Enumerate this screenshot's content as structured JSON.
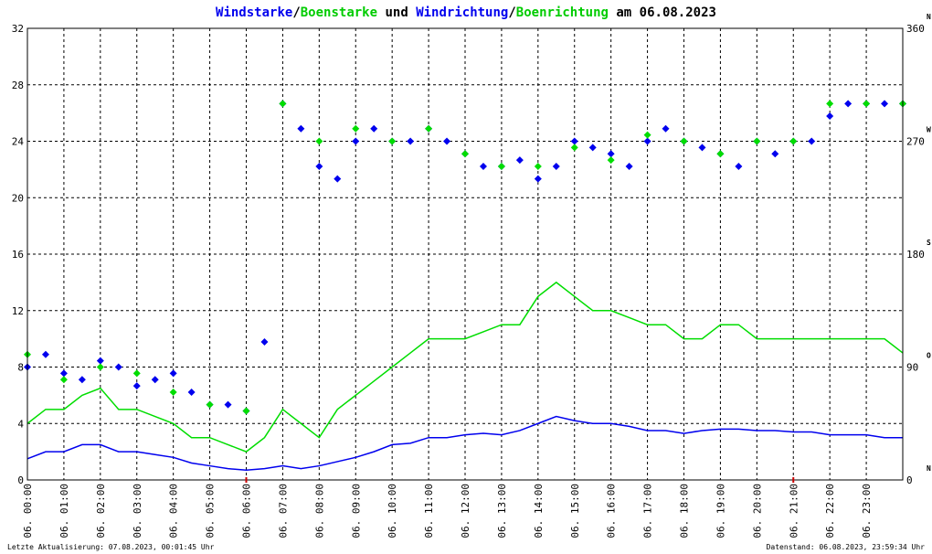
{
  "title": {
    "part1": "Windstarke",
    "sep1": "/",
    "part2": "Boenstarke",
    "mid": " und ",
    "part3": "Windrichtung",
    "sep2": "/",
    "part4": "Boenrichtung",
    "end": " am 06.08.2023"
  },
  "footer": {
    "left": "Letzte Aktualisierung: 07.08.2023, 00:01:45 Uhr",
    "right": "Datenstand: 06.08.2023, 23:59:34 Uhr"
  },
  "colors": {
    "wind": "#0000ee",
    "gust": "#00dd00",
    "grid": "#000000",
    "red_tick": "#cc0000"
  },
  "chart_data": {
    "type": "line",
    "title": "Windstarke/Boenstarke und Windrichtung/Boenrichtung am 06.08.2023",
    "x_unit": "hour of day",
    "xlim": [
      0,
      24
    ],
    "ylim_left": [
      0,
      32
    ],
    "ylim_right": [
      0,
      360
    ],
    "y_ticks_left": [
      "0",
      "4",
      "8",
      "12",
      "16",
      "20",
      "24",
      "28",
      "32"
    ],
    "y_ticks_right": [
      {
        "value": "0",
        "dir": "N"
      },
      {
        "value": "90",
        "dir": "O"
      },
      {
        "value": "180",
        "dir": "S"
      },
      {
        "value": "270",
        "dir": "W"
      },
      {
        "value": "360",
        "dir": "N"
      }
    ],
    "x_ticks": [
      {
        "h": 0,
        "label": "06. 00:00"
      },
      {
        "h": 1,
        "label": "06. 01:00"
      },
      {
        "h": 2,
        "label": "06. 02:00"
      },
      {
        "h": 3,
        "label": "06. 03:00"
      },
      {
        "h": 4,
        "label": "06. 04:00"
      },
      {
        "h": 5,
        "label": "06. 05:00"
      },
      {
        "h": 6,
        "label": "06. 06:00"
      },
      {
        "h": 7,
        "label": "06. 07:00"
      },
      {
        "h": 8,
        "label": "06. 08:00"
      },
      {
        "h": 9,
        "label": "06. 09:00"
      },
      {
        "h": 10,
        "label": "06. 10:00"
      },
      {
        "h": 11,
        "label": "06. 11:00"
      },
      {
        "h": 12,
        "label": "06. 12:00"
      },
      {
        "h": 13,
        "label": "06. 13:00"
      },
      {
        "h": 14,
        "label": "06. 14:00"
      },
      {
        "h": 15,
        "label": "06. 15:00"
      },
      {
        "h": 16,
        "label": "06. 16:00"
      },
      {
        "h": 17,
        "label": "06. 17:00"
      },
      {
        "h": 18,
        "label": "06. 18:00"
      },
      {
        "h": 19,
        "label": "06. 19:00"
      },
      {
        "h": 20,
        "label": "06. 20:00"
      },
      {
        "h": 21,
        "label": "06. 21:00"
      },
      {
        "h": 22,
        "label": "06. 22:00"
      },
      {
        "h": 23,
        "label": "06. 23:00"
      }
    ],
    "red_marks_h": [
      6,
      21
    ],
    "grid": true,
    "series": [
      {
        "name": "Windstarke",
        "color": "#0000ee",
        "axis": "left",
        "x": [
          0,
          0.5,
          1,
          1.5,
          2,
          2.5,
          3,
          3.5,
          4,
          4.5,
          5,
          5.5,
          6,
          6.5,
          7,
          7.5,
          8,
          8.5,
          9,
          9.5,
          10,
          10.5,
          11,
          11.5,
          12,
          12.5,
          13,
          13.5,
          14,
          14.5,
          15,
          15.5,
          16,
          16.5,
          17,
          17.5,
          18,
          18.5,
          19,
          19.5,
          20,
          20.5,
          21,
          21.5,
          22,
          22.5,
          23,
          23.5,
          24
        ],
        "y": [
          1.5,
          2,
          2,
          2.5,
          2.5,
          2,
          2,
          1.8,
          1.6,
          1.2,
          1,
          0.8,
          0.7,
          0.8,
          1,
          0.8,
          1,
          1.3,
          1.6,
          2,
          2.5,
          2.6,
          3,
          3,
          3.2,
          3.3,
          3.2,
          3.5,
          4,
          4.5,
          4.2,
          4,
          4,
          3.8,
          3.5,
          3.5,
          3.3,
          3.5,
          3.6,
          3.6,
          3.5,
          3.5,
          3.4,
          3.4,
          3.2,
          3.2,
          3.2,
          3,
          3
        ]
      },
      {
        "name": "Boenstarke",
        "color": "#00dd00",
        "axis": "left",
        "x": [
          0,
          0.5,
          1,
          1.5,
          2,
          2.5,
          3,
          3.5,
          4,
          4.5,
          5,
          5.5,
          6,
          6.5,
          7,
          7.5,
          8,
          8.5,
          9,
          9.5,
          10,
          10.5,
          11,
          11.5,
          12,
          12.5,
          13,
          13.5,
          14,
          14.5,
          15,
          15.5,
          16,
          16.5,
          17,
          17.5,
          18,
          18.5,
          19,
          19.5,
          20,
          20.5,
          21,
          21.5,
          22,
          22.5,
          23,
          23.5,
          24
        ],
        "y": [
          4,
          5,
          5,
          6,
          6.5,
          5,
          5,
          4.5,
          4,
          3,
          3,
          2.5,
          2,
          3,
          5,
          4,
          3,
          5,
          6,
          7,
          8,
          9,
          10,
          10,
          10,
          10.5,
          11,
          11,
          13,
          14,
          13,
          12,
          12,
          11.5,
          11,
          11,
          10,
          10,
          11,
          11,
          10,
          10,
          10,
          10,
          10,
          10,
          10,
          10,
          9
        ]
      },
      {
        "name": "Windrichtung",
        "color": "#0000ee",
        "axis": "right",
        "marker": "diamond",
        "x": [
          0,
          0.5,
          1,
          1.5,
          2,
          2.5,
          3,
          3.5,
          4,
          4.5,
          5,
          5.5,
          6,
          6.5,
          7,
          7.5,
          8,
          8.5,
          9,
          9.5,
          10,
          10.5,
          11,
          11.5,
          12,
          12.5,
          13,
          13.5,
          14,
          14.5,
          15,
          15.5,
          16,
          16.5,
          17,
          17.5,
          18,
          18.5,
          19,
          19.5,
          20,
          20.5,
          21,
          21.5,
          22,
          22.5,
          23,
          23.5,
          24
        ],
        "y": [
          90,
          100,
          85,
          80,
          95,
          90,
          75,
          80,
          85,
          70,
          60,
          60,
          55,
          110,
          300,
          280,
          250,
          240,
          270,
          280,
          270,
          270,
          280,
          270,
          260,
          250,
          250,
          255,
          240,
          250,
          270,
          265,
          260,
          250,
          270,
          280,
          270,
          265,
          260,
          250,
          270,
          260,
          270,
          270,
          290,
          300,
          300,
          300,
          300
        ]
      },
      {
        "name": "Boenrichtung",
        "color": "#00dd00",
        "axis": "right",
        "marker": "diamond",
        "x": [
          0,
          1,
          2,
          3,
          4,
          5,
          6,
          7,
          8,
          9,
          10,
          11,
          12,
          13,
          14,
          15,
          16,
          17,
          18,
          19,
          20,
          21,
          22,
          23,
          24
        ],
        "y": [
          100,
          80,
          90,
          85,
          70,
          60,
          55,
          300,
          270,
          280,
          270,
          280,
          260,
          250,
          250,
          265,
          255,
          275,
          270,
          260,
          270,
          270,
          300,
          300,
          300
        ]
      }
    ]
  }
}
